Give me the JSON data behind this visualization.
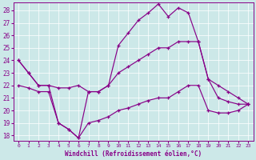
{
  "xlabel": "Windchill (Refroidissement éolien,°C)",
  "xlim": [
    -0.5,
    23.5
  ],
  "ylim": [
    17.6,
    28.6
  ],
  "yticks": [
    18,
    19,
    20,
    21,
    22,
    23,
    24,
    25,
    26,
    27,
    28
  ],
  "xticks": [
    0,
    1,
    2,
    3,
    4,
    5,
    6,
    7,
    8,
    9,
    10,
    11,
    12,
    13,
    14,
    15,
    16,
    17,
    18,
    19,
    20,
    21,
    22,
    23
  ],
  "bg_color": "#cce8e8",
  "line_color": "#880088",
  "series1_x": [
    0,
    1,
    2,
    3,
    4,
    5,
    6,
    7,
    8,
    9,
    10,
    11,
    12,
    13,
    14,
    15,
    16,
    17,
    18,
    19,
    20,
    21,
    22,
    23
  ],
  "series1_y": [
    24.0,
    23.0,
    22.0,
    22.0,
    21.8,
    21.8,
    22.0,
    21.5,
    21.5,
    22.0,
    23.0,
    23.5,
    24.0,
    24.5,
    25.0,
    25.0,
    25.5,
    25.5,
    25.5,
    22.5,
    22.0,
    21.5,
    21.0,
    20.5
  ],
  "series2_x": [
    0,
    1,
    2,
    3,
    4,
    5,
    6,
    7,
    8,
    9,
    10,
    11,
    12,
    13,
    14,
    15,
    16,
    17,
    18,
    19,
    20,
    21,
    22,
    23
  ],
  "series2_y": [
    24.0,
    23.0,
    22.0,
    22.0,
    19.0,
    18.5,
    17.8,
    21.5,
    21.5,
    22.0,
    25.2,
    26.2,
    27.2,
    27.8,
    28.5,
    27.5,
    28.2,
    27.8,
    25.5,
    22.5,
    21.0,
    20.7,
    20.5,
    20.5
  ],
  "series3_x": [
    0,
    1,
    2,
    3,
    4,
    5,
    6,
    7,
    8,
    9,
    10,
    11,
    12,
    13,
    14,
    15,
    16,
    17,
    18,
    19,
    20,
    21,
    22,
    23
  ],
  "series3_y": [
    22.0,
    21.8,
    21.5,
    21.5,
    19.0,
    18.5,
    17.8,
    19.0,
    19.2,
    19.5,
    20.0,
    20.2,
    20.5,
    20.8,
    21.0,
    21.0,
    21.5,
    22.0,
    22.0,
    20.0,
    19.8,
    19.8,
    20.0,
    20.5
  ]
}
